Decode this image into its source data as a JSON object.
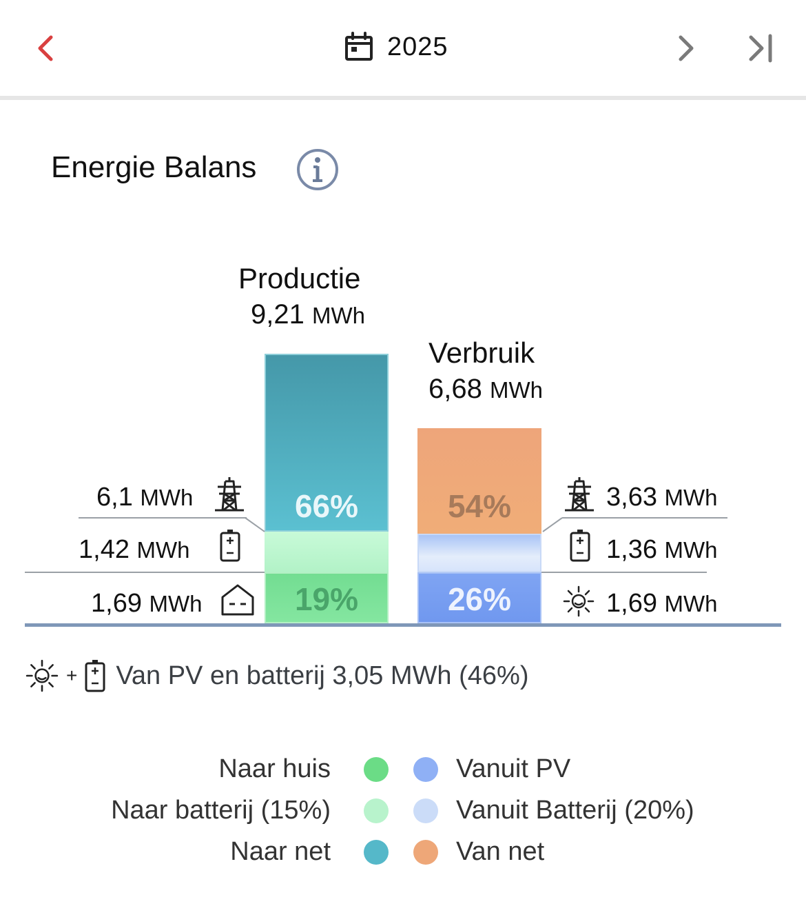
{
  "header": {
    "year": "2025",
    "icons": {
      "prev": "chevron-left-icon",
      "calendar": "calendar-icon",
      "next": "chevron-right-icon",
      "last": "skip-to-end-icon"
    }
  },
  "card": {
    "title": "Energie Balans",
    "info_icon": "info-icon"
  },
  "production": {
    "label": "Productie",
    "total_value": "9,21",
    "total_unit": "MWh",
    "segments": {
      "to_grid_pct": "66%",
      "to_battery_pct": "",
      "to_house_pct": "19%"
    },
    "side": {
      "grid_value": "6,1",
      "battery_value": "1,42",
      "house_value": "1,69",
      "unit": "MWh"
    }
  },
  "consumption": {
    "label": "Verbruik",
    "total_value": "6,68",
    "total_unit": "MWh",
    "segments": {
      "from_grid_pct": "54%",
      "from_battery_pct": "",
      "from_pv_pct": "26%"
    },
    "side": {
      "grid_value": "3,63",
      "battery_value": "1,36",
      "pv_value": "1,69",
      "unit": "MWh"
    }
  },
  "pv_summary": {
    "plus": "+",
    "text": "Van PV en batterij 3,05 MWh (46%)"
  },
  "legend": {
    "left": [
      {
        "label": "Naar huis",
        "color": "#6bdc86"
      },
      {
        "label": "Naar batterij (15%)",
        "color": "#b8f3cc"
      },
      {
        "label": "Naar net",
        "color": "#55b8c9"
      }
    ],
    "right": [
      {
        "label": "Vanuit PV",
        "color": "#8fb0f5"
      },
      {
        "label": "Vanuit Batterij (20%)",
        "color": "#cbdcf8"
      },
      {
        "label": "Van net",
        "color": "#eea778"
      }
    ]
  },
  "colors": {
    "accent_red": "#d94040",
    "grid_teal": "#4eb2c4",
    "orange": "#eea778",
    "green": "#7ee39a",
    "blue": "#7aa2f3",
    "baseline": "#7f97b8"
  }
}
